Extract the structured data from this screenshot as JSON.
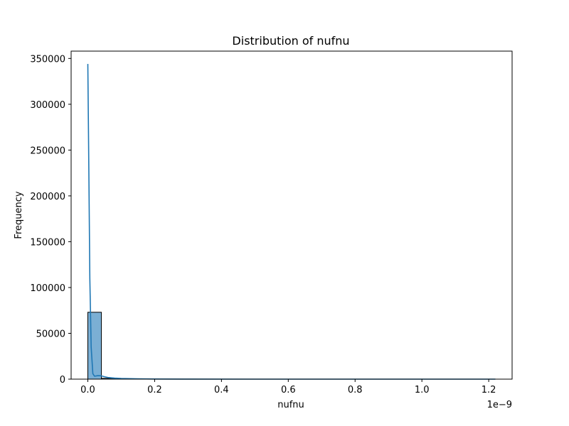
{
  "chart_data": {
    "type": "bar",
    "title": "Distribution of nufnu",
    "xlabel": "nufnu",
    "ylabel": "Frequency",
    "x_offset_text": "1e−9",
    "xlim": [
      -0.05,
      1.27
    ],
    "ylim": [
      0,
      358000
    ],
    "x_ticks": [
      {
        "value": 0.0,
        "label": "0.0"
      },
      {
        "value": 0.2,
        "label": "0.2"
      },
      {
        "value": 0.4,
        "label": "0.4"
      },
      {
        "value": 0.6,
        "label": "0.6"
      },
      {
        "value": 0.8,
        "label": "0.8"
      },
      {
        "value": 1.0,
        "label": "1.0"
      },
      {
        "value": 1.2,
        "label": "1.2"
      }
    ],
    "y_ticks": [
      {
        "value": 0,
        "label": "0"
      },
      {
        "value": 50000,
        "label": "50000"
      },
      {
        "value": 100000,
        "label": "100000"
      },
      {
        "value": 150000,
        "label": "150000"
      },
      {
        "value": 200000,
        "label": "200000"
      },
      {
        "value": 250000,
        "label": "250000"
      },
      {
        "value": 300000,
        "label": "300000"
      },
      {
        "value": 350000,
        "label": "350000"
      }
    ],
    "bins": [
      {
        "start": 0.0,
        "end": 0.0406,
        "count": 73000
      },
      {
        "start": 0.0406,
        "end": 0.0812,
        "count": 900
      },
      {
        "start": 0.0812,
        "end": 0.1218,
        "count": 300
      },
      {
        "start": 0.1218,
        "end": 0.1624,
        "count": 150
      },
      {
        "start": 0.1624,
        "end": 0.203,
        "count": 80
      },
      {
        "start": 0.203,
        "end": 0.2436,
        "count": 50
      },
      {
        "start": 0.2436,
        "end": 0.2842,
        "count": 30
      },
      {
        "start": 0.2842,
        "end": 0.3248,
        "count": 20
      }
    ],
    "kde": {
      "x": [
        0.0,
        0.003,
        0.006,
        0.01,
        0.015,
        0.02,
        0.03,
        0.04,
        0.05,
        0.06,
        0.08,
        0.1,
        0.15,
        0.2,
        0.3,
        0.5,
        0.8,
        1.0,
        1.22
      ],
      "y": [
        344000,
        230000,
        110000,
        35000,
        6000,
        3200,
        3800,
        3600,
        2600,
        1800,
        1100,
        700,
        350,
        150,
        50,
        10,
        3,
        1,
        0
      ]
    },
    "colors": {
      "bar_fill": "#7bafd4",
      "bar_edge": "#000000",
      "kde_line": "#1f77b4"
    },
    "grid": false,
    "legend": "none"
  }
}
